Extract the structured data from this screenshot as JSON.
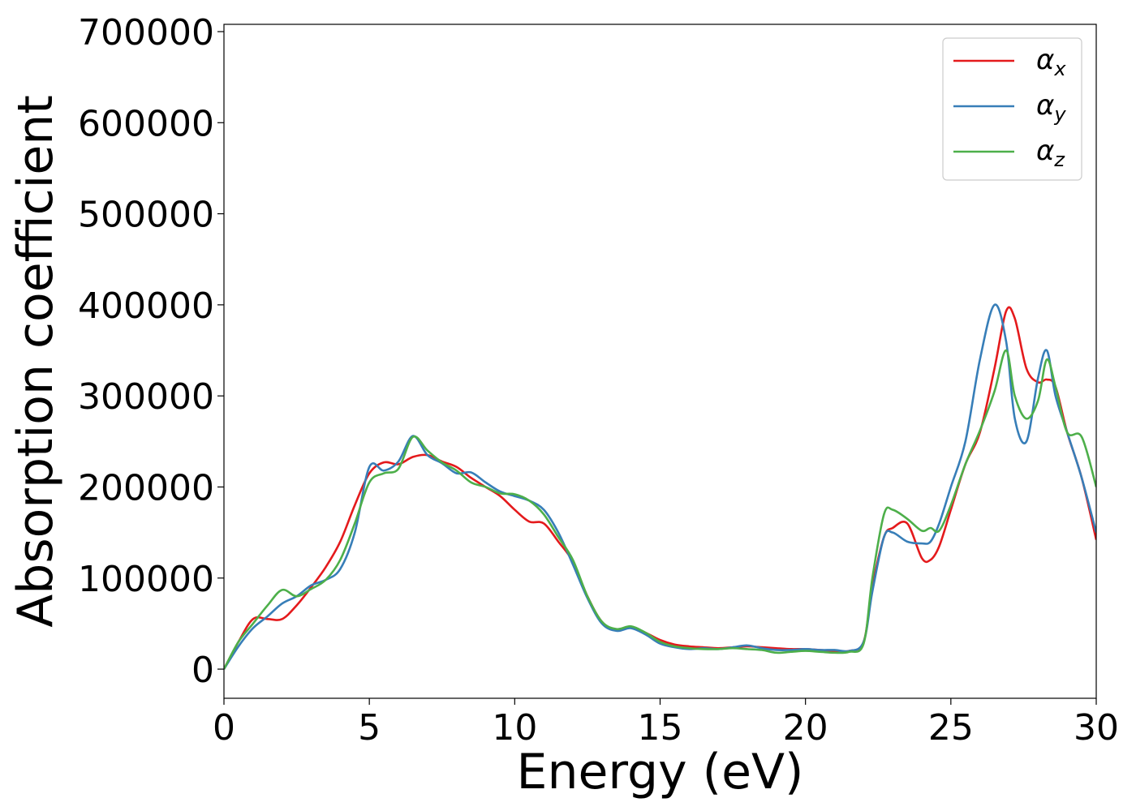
{
  "chart_data": {
    "type": "line",
    "title": "",
    "xlabel": "Energy (eV)",
    "ylabel": "Absorption coefficient",
    "xlim": [
      0,
      30
    ],
    "ylim": [
      -32000,
      708000
    ],
    "xticks": [
      0,
      5,
      10,
      15,
      20,
      25,
      30
    ],
    "yticks": [
      0,
      100000,
      200000,
      300000,
      400000,
      500000,
      600000,
      700000
    ],
    "grid": false,
    "legend_position": "top-right",
    "series": [
      {
        "name": "αx",
        "name_base": "α",
        "name_sub": "x",
        "color": "#e41a1c",
        "x": [
          0,
          0.5,
          1.0,
          1.5,
          2.0,
          2.5,
          3.0,
          3.5,
          4.0,
          4.5,
          5.0,
          5.5,
          6.0,
          6.5,
          7.0,
          7.5,
          8.0,
          8.5,
          9.0,
          9.5,
          10.0,
          10.5,
          11.0,
          11.5,
          12.0,
          12.5,
          13.0,
          13.5,
          14.0,
          14.5,
          15.0,
          15.5,
          16.0,
          16.5,
          17.0,
          17.5,
          18.0,
          18.5,
          19.0,
          19.5,
          20.0,
          20.5,
          21.0,
          21.5,
          22.0,
          22.3,
          22.7,
          23.0,
          23.5,
          24.0,
          24.3,
          24.6,
          25.0,
          25.5,
          26.0,
          26.5,
          26.9,
          27.2,
          27.6,
          28.0,
          28.3,
          28.6,
          29.0,
          29.5,
          30.0
        ],
        "values": [
          0,
          30000,
          55000,
          55000,
          55000,
          70000,
          90000,
          112000,
          140000,
          180000,
          215000,
          227000,
          225000,
          233000,
          235000,
          228000,
          222000,
          210000,
          200000,
          190000,
          175000,
          162000,
          160000,
          140000,
          118000,
          80000,
          52000,
          43000,
          46000,
          40000,
          32000,
          27000,
          25000,
          24000,
          23000,
          24000,
          25000,
          24000,
          23000,
          22000,
          22000,
          21000,
          20000,
          20000,
          30000,
          90000,
          145000,
          155000,
          160000,
          122000,
          120000,
          135000,
          175000,
          225000,
          260000,
          330000,
          393000,
          385000,
          330000,
          315000,
          318000,
          310000,
          260000,
          210000,
          142000
        ]
      },
      {
        "name": "αy",
        "name_base": "α",
        "name_sub": "y",
        "color": "#377eb8",
        "x": [
          0,
          0.5,
          1.0,
          1.5,
          2.0,
          2.5,
          3.0,
          3.5,
          4.0,
          4.5,
          5.0,
          5.5,
          6.0,
          6.5,
          7.0,
          7.5,
          8.0,
          8.5,
          9.0,
          9.5,
          10.0,
          10.5,
          11.0,
          11.5,
          12.0,
          12.5,
          13.0,
          13.5,
          14.0,
          14.5,
          15.0,
          15.5,
          16.0,
          16.5,
          17.0,
          17.5,
          18.0,
          18.5,
          19.0,
          19.5,
          20.0,
          20.5,
          21.0,
          21.5,
          22.0,
          22.3,
          22.7,
          23.0,
          23.5,
          24.0,
          24.3,
          24.6,
          25.0,
          25.5,
          26.0,
          26.5,
          26.9,
          27.2,
          27.6,
          28.0,
          28.3,
          28.6,
          29.0,
          29.5,
          30.0
        ],
        "values": [
          0,
          25000,
          45000,
          58000,
          72000,
          80000,
          92000,
          98000,
          110000,
          150000,
          222000,
          218000,
          228000,
          256000,
          235000,
          226000,
          215000,
          216000,
          205000,
          195000,
          190000,
          185000,
          175000,
          150000,
          115000,
          78000,
          50000,
          42000,
          45000,
          38000,
          28000,
          24000,
          22000,
          23000,
          22000,
          24000,
          26000,
          23000,
          21000,
          21000,
          22000,
          21000,
          21000,
          20000,
          30000,
          85000,
          145000,
          150000,
          140000,
          138000,
          140000,
          160000,
          200000,
          250000,
          340000,
          400000,
          360000,
          275000,
          250000,
          320000,
          350000,
          300000,
          260000,
          210000,
          150000
        ]
      },
      {
        "name": "αz",
        "name_base": "α",
        "name_sub": "z",
        "color": "#4daf4a",
        "x": [
          0,
          0.5,
          1.0,
          1.5,
          2.0,
          2.5,
          3.0,
          3.5,
          4.0,
          4.5,
          5.0,
          5.5,
          6.0,
          6.5,
          7.0,
          7.5,
          8.0,
          8.5,
          9.0,
          9.5,
          10.0,
          10.5,
          11.0,
          11.5,
          12.0,
          12.5,
          13.0,
          13.5,
          14.0,
          14.5,
          15.0,
          15.5,
          16.0,
          16.5,
          17.0,
          17.5,
          18.0,
          18.5,
          19.0,
          19.5,
          20.0,
          20.5,
          21.0,
          21.5,
          22.0,
          22.3,
          22.7,
          23.0,
          23.5,
          24.0,
          24.3,
          24.6,
          25.0,
          25.5,
          26.0,
          26.5,
          26.9,
          27.2,
          27.6,
          28.0,
          28.3,
          28.6,
          29.0,
          29.5,
          30.0
        ],
        "values": [
          0,
          30000,
          50000,
          70000,
          87000,
          80000,
          88000,
          98000,
          120000,
          160000,
          205000,
          215000,
          220000,
          255000,
          240000,
          227000,
          218000,
          205000,
          200000,
          193000,
          192000,
          185000,
          170000,
          145000,
          120000,
          80000,
          52000,
          44000,
          47000,
          40000,
          30000,
          25000,
          23000,
          22000,
          22000,
          23000,
          22000,
          21000,
          18000,
          19000,
          20000,
          19000,
          18000,
          19000,
          28000,
          100000,
          170000,
          175000,
          165000,
          152000,
          155000,
          152000,
          180000,
          225000,
          262000,
          305000,
          350000,
          300000,
          275000,
          295000,
          340000,
          310000,
          260000,
          255000,
          200000
        ]
      }
    ]
  }
}
